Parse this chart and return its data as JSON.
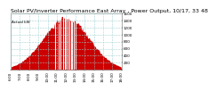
{
  "title": "Solar PV/Inverter Performance East Array , Power Output, 10/17, 33 48",
  "subtitle": "Actual kW",
  "bg_color": "#ffffff",
  "plot_bg": "#ffffff",
  "bar_color": "#cc0000",
  "spike_color": "#ffffff",
  "grid_color": "#99cccc",
  "grid_style": "--",
  "ymax": 1600,
  "ymin": 0,
  "yticks": [
    200,
    400,
    600,
    800,
    1000,
    1200,
    1400,
    1600
  ],
  "ytick_labels": [
    "200",
    "400",
    "600",
    "800",
    "1000",
    "1200",
    "1400",
    "1600"
  ],
  "num_points": 144,
  "peak_index": 72,
  "peak_value": 1520,
  "xtick_positions": [
    0,
    12,
    24,
    36,
    48,
    60,
    72,
    84,
    96,
    108,
    120,
    132,
    144
  ],
  "xtick_labels": [
    "6:00",
    "7:00",
    "8:00",
    "9:00",
    "10:00",
    "11:00",
    "12:00",
    "13:00",
    "14:00",
    "15:00",
    "16:00",
    "17:00",
    "18:00"
  ],
  "title_fontsize": 4.5,
  "tick_fontsize": 3.0,
  "spike_positions": [
    58,
    62,
    65,
    68,
    70,
    72,
    74,
    76,
    78,
    80,
    82,
    84
  ]
}
